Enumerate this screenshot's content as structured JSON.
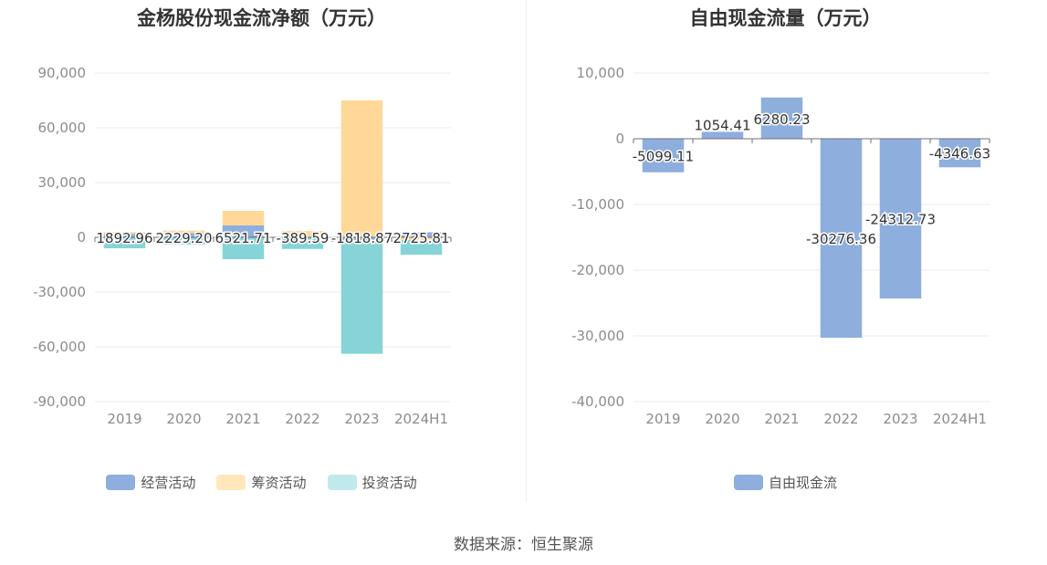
{
  "source": "数据来源：恒生聚源",
  "colors": {
    "operating": "#8eaedd",
    "financing": "#ffd899",
    "investing": "#86d4d8",
    "fcf": "#8eaedd"
  },
  "chart_data": [
    {
      "type": "bar",
      "title": "金杨股份现金流净额（万元）",
      "categories": [
        "2019",
        "2020",
        "2021",
        "2022",
        "2023",
        "2024H1"
      ],
      "ylim": [
        -90000,
        90000
      ],
      "yticks": [
        90000,
        60000,
        30000,
        0,
        -30000,
        -60000,
        -90000
      ],
      "ytick_labels": [
        "90,000",
        "60,000",
        "30,000",
        "0",
        "-30,000",
        "-60,000",
        "-90,000"
      ],
      "stacked": true,
      "series": [
        {
          "name": "经营活动",
          "color": "#8eaedd",
          "values": [
            1892.96,
            2229.2,
            6521.71,
            -389.59,
            -1818.87,
            2725.81
          ],
          "labels": [
            "1892.96",
            "2229.20",
            "6521.71",
            "-389.59",
            "-1818.87",
            "2725.81"
          ]
        },
        {
          "name": "筹资活动",
          "color": "#ffd899",
          "values": [
            1000,
            1500,
            8000,
            3500,
            75000,
            -1500
          ]
        },
        {
          "name": "投资活动",
          "color": "#86d4d8",
          "values": [
            -6000,
            -4000,
            -12000,
            -6000,
            -62000,
            -8000
          ]
        }
      ],
      "legend": "bottom",
      "grid": true
    },
    {
      "type": "bar",
      "title": "自由现金流量（万元）",
      "categories": [
        "2019",
        "2020",
        "2021",
        "2022",
        "2023",
        "2024H1"
      ],
      "ylim": [
        -40000,
        10000
      ],
      "yticks": [
        10000,
        0,
        -10000,
        -20000,
        -30000,
        -40000
      ],
      "ytick_labels": [
        "10,000",
        "0",
        "-10,000",
        "-20,000",
        "-30,000",
        "-40,000"
      ],
      "series": [
        {
          "name": "自由现金流",
          "color": "#8eaedd",
          "values": [
            -5099.11,
            1054.41,
            6280.23,
            -30276.36,
            -24312.73,
            -4346.63
          ],
          "labels": [
            "-5099.11",
            "1054.41",
            "6280.23",
            "-30276.36",
            "-24312.73",
            "-4346.63"
          ]
        }
      ],
      "legend": "bottom",
      "grid": true
    }
  ]
}
